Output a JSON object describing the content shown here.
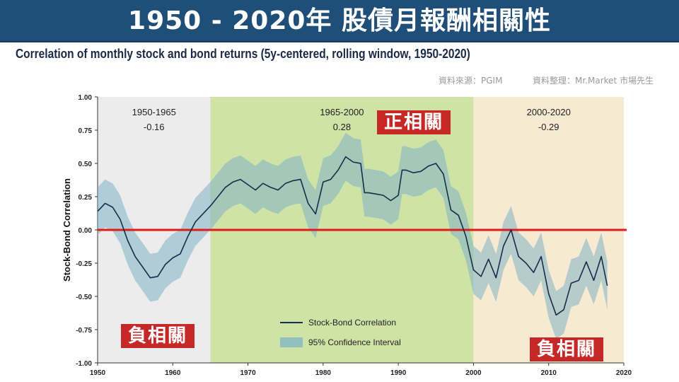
{
  "header": {
    "title": "1950 - 2020年  股債月報酬相關性",
    "subtitle": "Correlation of monthly stock and bond returns (5y-centered, rolling window, 1950-2020)",
    "source_left": "資料來源：PGIM",
    "source_right": "資料整理：Mr.Market  市場先生"
  },
  "tags": {
    "positive": "正相關",
    "negative_left": "負相關",
    "negative_right": "負相關"
  },
  "colors": {
    "banner": "#1f4e79",
    "line": "#1a2b4c",
    "band": "#7fb3c4",
    "zero_line": "#e01b1b",
    "period1_bg": "#ececec",
    "period2_bg": "#cfe3a6",
    "period3_bg": "#f6ead2",
    "tag_bg": "#c62828"
  },
  "chart_data": {
    "type": "line",
    "title": "Correlation of monthly stock and bond returns (5y-centered, rolling window, 1950-2020)",
    "ylabel": "Stock-Bond Correlation",
    "xlabel": "",
    "xlim": [
      1950,
      2020
    ],
    "ylim": [
      -1.0,
      1.0
    ],
    "x_ticks": [
      "1950",
      "1960",
      "1970",
      "1980",
      "1990",
      "2000",
      "2010",
      "2020"
    ],
    "y_ticks": [
      "1.00",
      "0.75",
      "0.50",
      "0.25",
      "0.00",
      "-0.25",
      "-0.50",
      "-0.75",
      "-1.00"
    ],
    "periods": [
      {
        "range": "1950-1965",
        "value": "-0.16",
        "start": 1950,
        "end": 1965
      },
      {
        "range": "1965-2000",
        "value": "0.28",
        "start": 1965,
        "end": 2000
      },
      {
        "range": "2000-2020",
        "value": "-0.29",
        "start": 2000,
        "end": 2020
      }
    ],
    "legend": {
      "line_label": "Stock-Bond Correlation",
      "band_label": "95% Confidence Interval",
      "position": "bottom-center"
    },
    "series": [
      {
        "name": "Stock-Bond Correlation",
        "x": [
          1950,
          1951,
          1952,
          1953,
          1954,
          1955,
          1956,
          1957,
          1958,
          1959,
          1960,
          1961,
          1962,
          1963,
          1964,
          1965,
          1966,
          1967,
          1968,
          1969,
          1970,
          1971,
          1972,
          1973,
          1974,
          1975,
          1976,
          1977,
          1978,
          1979,
          1980,
          1981,
          1982,
          1983,
          1984,
          1985,
          1985.5,
          1986,
          1987,
          1988,
          1989,
          1990,
          1990.5,
          1991,
          1992,
          1993,
          1994,
          1995,
          1996,
          1997,
          1998,
          1999,
          2000,
          2001,
          2002,
          2003,
          2004,
          2005,
          2006,
          2007,
          2008,
          2009,
          2010,
          2011,
          2012,
          2013,
          2014,
          2015,
          2016,
          2017,
          2017.8
        ],
        "y": [
          0.14,
          0.2,
          0.17,
          0.08,
          -0.08,
          -0.2,
          -0.28,
          -0.36,
          -0.35,
          -0.26,
          -0.21,
          -0.18,
          -0.05,
          0.06,
          0.12,
          0.18,
          0.25,
          0.32,
          0.36,
          0.38,
          0.34,
          0.3,
          0.35,
          0.32,
          0.3,
          0.35,
          0.37,
          0.38,
          0.2,
          0.12,
          0.36,
          0.38,
          0.45,
          0.55,
          0.51,
          0.5,
          0.28,
          0.28,
          0.27,
          0.26,
          0.22,
          0.26,
          0.45,
          0.45,
          0.43,
          0.44,
          0.48,
          0.5,
          0.42,
          0.15,
          0.11,
          -0.05,
          -0.3,
          -0.35,
          -0.22,
          -0.36,
          -0.12,
          0.0,
          -0.2,
          -0.25,
          -0.32,
          -0.2,
          -0.48,
          -0.64,
          -0.6,
          -0.4,
          -0.38,
          -0.24,
          -0.38,
          -0.2,
          -0.42
        ]
      }
    ],
    "confidence_band_halfwidth": 0.18
  }
}
